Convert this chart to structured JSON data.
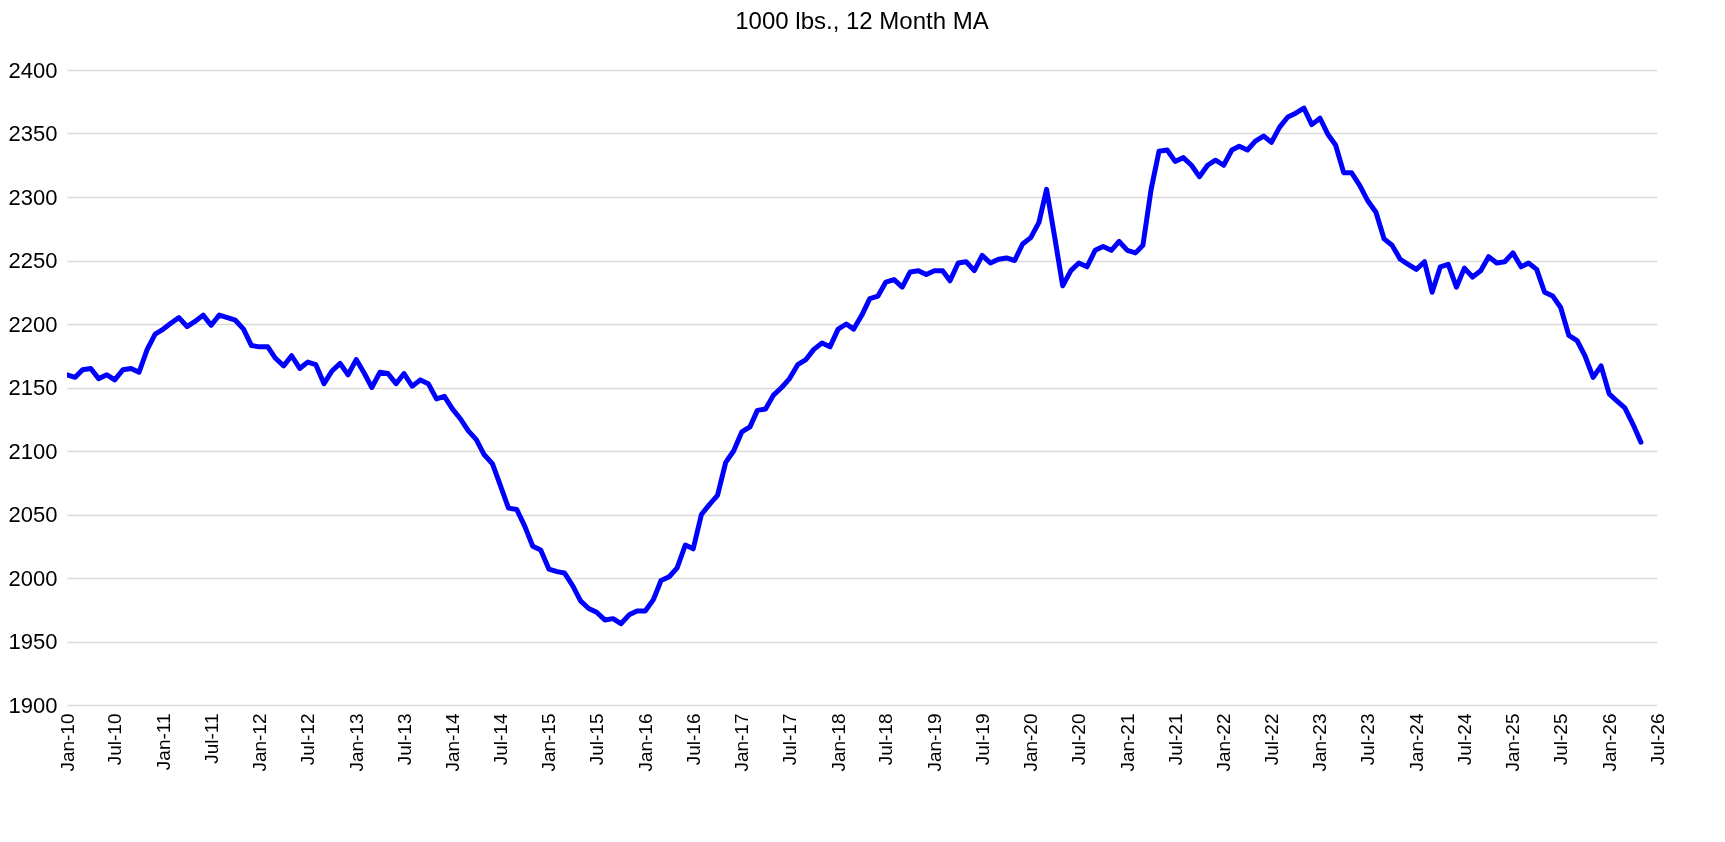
{
  "chart_data": {
    "type": "line",
    "title": "1000 lbs., 12 Month MA",
    "x": [
      "2010-01",
      "2010-02",
      "2010-03",
      "2010-04",
      "2010-05",
      "2010-06",
      "2010-07",
      "2010-08",
      "2010-09",
      "2010-10",
      "2010-11",
      "2010-12",
      "2011-01",
      "2011-02",
      "2011-03",
      "2011-04",
      "2011-05",
      "2011-06",
      "2011-07",
      "2011-08",
      "2011-09",
      "2011-10",
      "2011-11",
      "2011-12",
      "2012-01",
      "2012-02",
      "2012-03",
      "2012-04",
      "2012-05",
      "2012-06",
      "2012-07",
      "2012-08",
      "2012-09",
      "2012-10",
      "2012-11",
      "2012-12",
      "2013-01",
      "2013-02",
      "2013-03",
      "2013-04",
      "2013-05",
      "2013-06",
      "2013-07",
      "2013-08",
      "2013-09",
      "2013-10",
      "2013-11",
      "2013-12",
      "2014-01",
      "2014-02",
      "2014-03",
      "2014-04",
      "2014-05",
      "2014-06",
      "2014-07",
      "2014-08",
      "2014-09",
      "2014-10",
      "2014-11",
      "2014-12",
      "2015-01",
      "2015-02",
      "2015-03",
      "2015-04",
      "2015-05",
      "2015-06",
      "2015-07",
      "2015-08",
      "2015-09",
      "2015-10",
      "2015-11",
      "2015-12",
      "2016-01",
      "2016-02",
      "2016-03",
      "2016-04",
      "2016-05",
      "2016-06",
      "2016-07",
      "2016-08",
      "2016-09",
      "2016-10",
      "2016-11",
      "2016-12",
      "2017-01",
      "2017-02",
      "2017-03",
      "2017-04",
      "2017-05",
      "2017-06",
      "2017-07",
      "2017-08",
      "2017-09",
      "2017-10",
      "2017-11",
      "2017-12",
      "2018-01",
      "2018-02",
      "2018-03",
      "2018-04",
      "2018-05",
      "2018-06",
      "2018-07",
      "2018-08",
      "2018-09",
      "2018-10",
      "2018-11",
      "2018-12",
      "2019-01",
      "2019-02",
      "2019-03",
      "2019-04",
      "2019-05",
      "2019-06",
      "2019-07",
      "2019-08",
      "2019-09",
      "2019-10",
      "2019-11",
      "2019-12",
      "2020-01",
      "2020-02",
      "2020-03",
      "2020-04",
      "2020-05",
      "2020-06",
      "2020-07",
      "2020-08",
      "2020-09",
      "2020-10",
      "2020-11",
      "2020-12",
      "2021-01",
      "2021-02",
      "2021-03",
      "2021-04",
      "2021-05",
      "2021-06",
      "2021-07",
      "2021-08",
      "2021-09",
      "2021-10",
      "2021-11",
      "2021-12",
      "2022-01",
      "2022-02",
      "2022-03",
      "2022-04",
      "2022-05",
      "2022-06",
      "2022-07",
      "2022-08",
      "2022-09",
      "2022-10",
      "2022-11",
      "2022-12",
      "2023-01",
      "2023-02",
      "2023-03",
      "2023-04",
      "2023-05",
      "2023-06",
      "2023-07",
      "2023-08",
      "2023-09",
      "2023-10",
      "2023-11",
      "2023-12",
      "2024-01",
      "2024-02",
      "2024-03",
      "2024-04",
      "2024-05",
      "2024-06",
      "2024-07",
      "2024-08",
      "2024-09",
      "2024-10",
      "2024-11",
      "2024-12",
      "2025-01",
      "2025-02",
      "2025-03",
      "2025-04",
      "2025-05",
      "2025-06",
      "2025-07",
      "2025-08",
      "2025-09",
      "2025-10",
      "2025-11",
      "2025-12",
      "2026-01",
      "2026-02",
      "2026-03",
      "2026-04",
      "2026-05"
    ],
    "series": [
      {
        "color": "#0000ff",
        "values": [
          2160,
          2158,
          2164,
          2165,
          2157,
          2160,
          2156,
          2164,
          2165,
          2162,
          2180,
          2192,
          2196,
          2201,
          2205,
          2198,
          2202,
          2207,
          2199,
          2207,
          2205,
          2203,
          2196,
          2183,
          2182,
          2182,
          2173,
          2167,
          2175,
          2165,
          2170,
          2168,
          2153,
          2163,
          2169,
          2160,
          2172,
          2161,
          2150,
          2162,
          2161,
          2153,
          2161,
          2151,
          2156,
          2153,
          2141,
          2143,
          2133,
          2125,
          2116,
          2109,
          2097,
          2090,
          2073,
          2055,
          2054,
          2041,
          2025,
          2022,
          2007,
          2005,
          2004,
          1994,
          1982,
          1976,
          1973,
          1967,
          1968,
          1964,
          1971,
          1974,
          1974,
          1983,
          1998,
          2001,
          2008,
          2026,
          2023,
          2050,
          2058,
          2065,
          2091,
          2100,
          2115,
          2119,
          2132,
          2133,
          2144,
          2150,
          2157,
          2168,
          2172,
          2180,
          2185,
          2182,
          2196,
          2200,
          2196,
          2207,
          2220,
          2222,
          2233,
          2235,
          2229,
          2241,
          2242,
          2239,
          2242,
          2242,
          2234,
          2248,
          2249,
          2242,
          2254,
          2248,
          2251,
          2252,
          2250,
          2263,
          2268,
          2280,
          2306,
          2268,
          2230,
          2242,
          2248,
          2245,
          2258,
          2261,
          2258,
          2265,
          2258,
          2256,
          2262,
          2306,
          2336,
          2337,
          2328,
          2331,
          2325,
          2316,
          2325,
          2329,
          2325,
          2337,
          2340,
          2337,
          2344,
          2348,
          2343,
          2355,
          2363,
          2366,
          2370,
          2357,
          2362,
          2349,
          2341,
          2319,
          2319,
          2309,
          2297,
          2288,
          2267,
          2262,
          2251,
          2247,
          2243,
          2249,
          2225,
          2245,
          2247,
          2229,
          2244,
          2237,
          2242,
          2253,
          2248,
          2249,
          2256,
          2245,
          2248,
          2243,
          2225,
          2222,
          2213,
          2191,
          2187,
          2175,
          2158,
          2167,
          2145,
          2139,
          2134,
          2121,
          2107
        ]
      }
    ],
    "xlim": [
      "2010-01",
      "2026-07"
    ],
    "xticks": [
      {
        "value": "2010-01",
        "label": "Jan-10"
      },
      {
        "value": "2010-07",
        "label": "Jul-10"
      },
      {
        "value": "2011-01",
        "label": "Jan-11"
      },
      {
        "value": "2011-07",
        "label": "Jul-11"
      },
      {
        "value": "2012-01",
        "label": "Jan-12"
      },
      {
        "value": "2012-07",
        "label": "Jul-12"
      },
      {
        "value": "2013-01",
        "label": "Jan-13"
      },
      {
        "value": "2013-07",
        "label": "Jul-13"
      },
      {
        "value": "2014-01",
        "label": "Jan-14"
      },
      {
        "value": "2014-07",
        "label": "Jul-14"
      },
      {
        "value": "2015-01",
        "label": "Jan-15"
      },
      {
        "value": "2015-07",
        "label": "Jul-15"
      },
      {
        "value": "2016-01",
        "label": "Jan-16"
      },
      {
        "value": "2016-07",
        "label": "Jul-16"
      },
      {
        "value": "2017-01",
        "label": "Jan-17"
      },
      {
        "value": "2017-07",
        "label": "Jul-17"
      },
      {
        "value": "2018-01",
        "label": "Jan-18"
      },
      {
        "value": "2018-07",
        "label": "Jul-18"
      },
      {
        "value": "2019-01",
        "label": "Jan-19"
      },
      {
        "value": "2019-07",
        "label": "Jul-19"
      },
      {
        "value": "2020-01",
        "label": "Jan-20"
      },
      {
        "value": "2020-07",
        "label": "Jul-20"
      },
      {
        "value": "2021-01",
        "label": "Jan-21"
      },
      {
        "value": "2021-07",
        "label": "Jul-21"
      },
      {
        "value": "2022-01",
        "label": "Jan-22"
      },
      {
        "value": "2022-07",
        "label": "Jul-22"
      },
      {
        "value": "2023-01",
        "label": "Jan-23"
      },
      {
        "value": "2023-07",
        "label": "Jul-23"
      },
      {
        "value": "2024-01",
        "label": "Jan-24"
      },
      {
        "value": "2024-07",
        "label": "Jul-24"
      },
      {
        "value": "2025-01",
        "label": "Jan-25"
      },
      {
        "value": "2025-07",
        "label": "Jul-25"
      },
      {
        "value": "2026-01",
        "label": "Jan-26"
      },
      {
        "value": "2026-07",
        "label": "Jul-26"
      }
    ],
    "ylim": [
      1900,
      2400
    ],
    "yticks": [
      1900,
      1950,
      2000,
      2050,
      2100,
      2150,
      2200,
      2250,
      2300,
      2350,
      2400
    ],
    "grid": "y",
    "marker": "none",
    "line_style": "solid"
  }
}
